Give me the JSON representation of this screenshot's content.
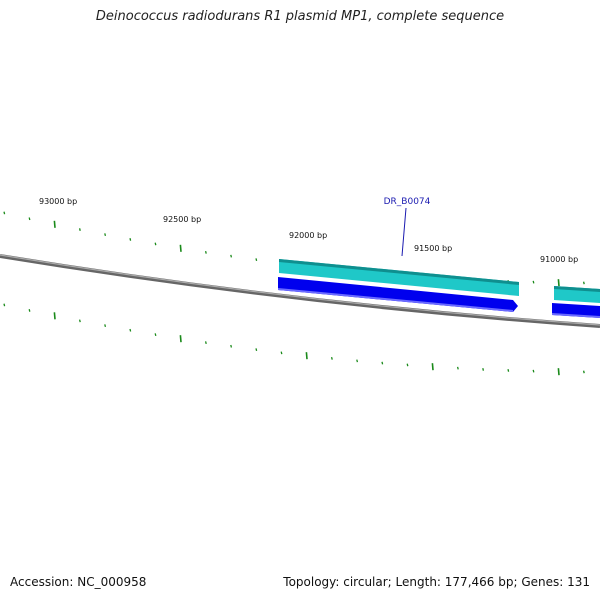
{
  "title": "Deinococcus radiodurans R1 plasmid MP1, complete sequence",
  "accession": "Accession: NC_000958",
  "summary": "Topology: circular; Length: 177,466 bp; Genes: 131",
  "position_labels": [
    "93000 bp",
    "92500 bp",
    "92000 bp",
    "91500 bp",
    "91000 bp"
  ],
  "gene_label": "DR_B0074",
  "colors": {
    "backbone": "#7a7a7a",
    "ticks": "#1a8a1a",
    "gene_teal": "#1fc8c8",
    "gene_teal_dark": "#0f8f8f",
    "gene_blue": "#0000ee",
    "gene_label": "#1a1ab0"
  }
}
